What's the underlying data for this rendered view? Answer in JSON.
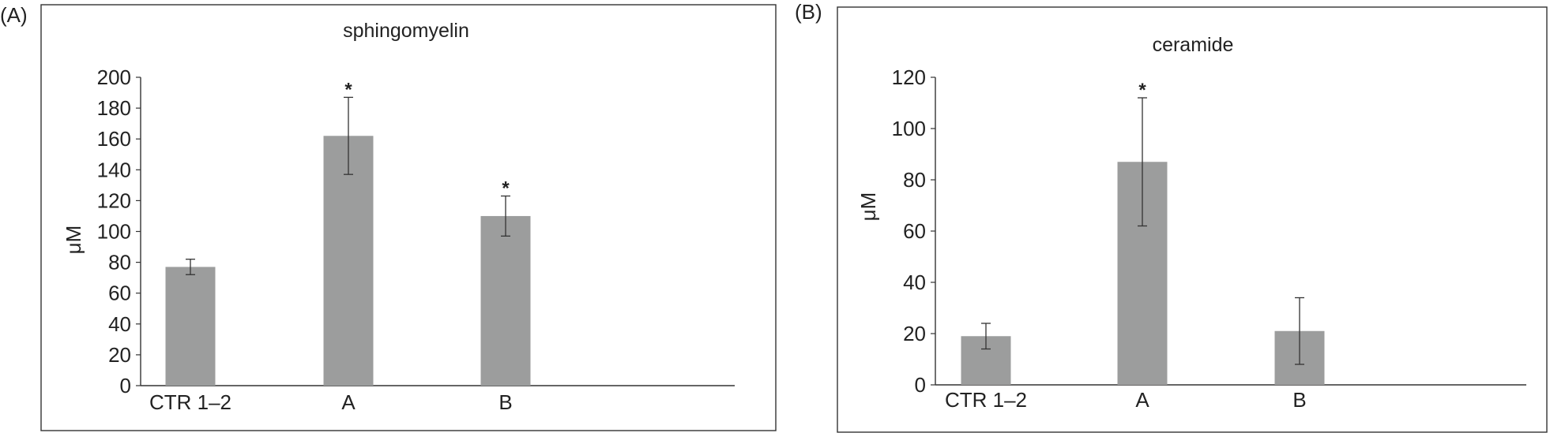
{
  "chart_data": [
    {
      "type": "bar",
      "panel_label": "(A)",
      "title": "sphingomyelin",
      "ylabel": "μM",
      "xlabel": "",
      "ylim": [
        0,
        200
      ],
      "yticks": [
        0,
        20,
        40,
        60,
        80,
        100,
        120,
        140,
        160,
        180,
        200
      ],
      "categories": [
        "CTR 1–2",
        "A",
        "B"
      ],
      "values": [
        77,
        162,
        110
      ],
      "errors": [
        5,
        25,
        13
      ],
      "significance": [
        "",
        "*",
        "*"
      ],
      "color": "#9c9d9d"
    },
    {
      "type": "bar",
      "panel_label": "(B)",
      "title": "ceramide",
      "ylabel": "μM",
      "xlabel": "",
      "ylim": [
        0,
        120
      ],
      "yticks": [
        0,
        20,
        40,
        60,
        80,
        100,
        120
      ],
      "categories": [
        "CTR 1–2",
        "A",
        "B"
      ],
      "values": [
        19,
        87,
        21
      ],
      "errors": [
        5,
        25,
        13
      ],
      "significance": [
        "",
        "*",
        ""
      ],
      "color": "#9c9d9d"
    }
  ]
}
